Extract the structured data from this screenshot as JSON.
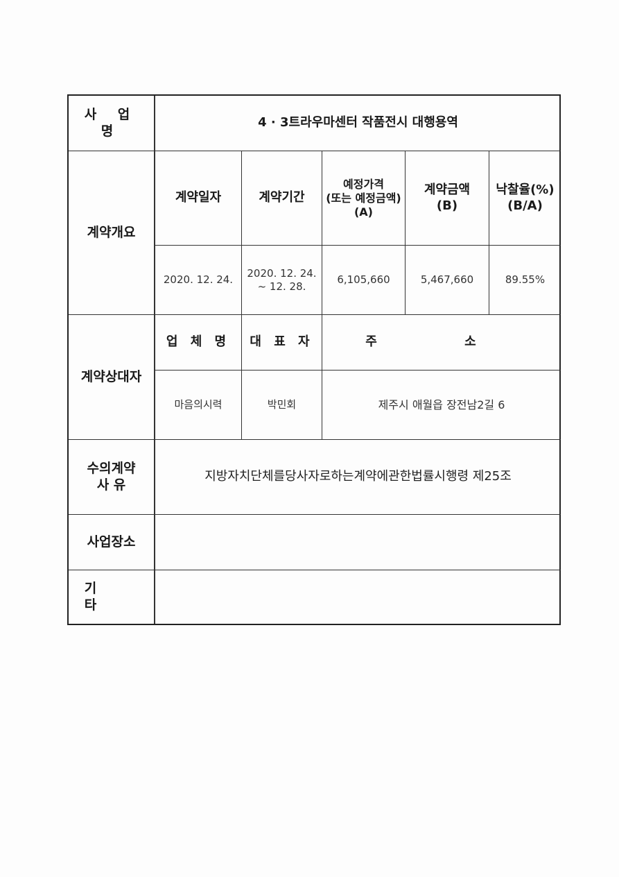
{
  "project": {
    "label": "사 업 명",
    "value": "4 · 3트라우마센터 작품전시 대행용역"
  },
  "overview": {
    "label": "계약개요",
    "headers": [
      "계약일자",
      "계약기간",
      "예정가격\n(또는 예정금액)\n(A)",
      "계약금액\n(B)",
      "낙찰율(%)\n(B/A)"
    ],
    "values": [
      "2020. 12. 24.",
      "2020. 12. 24.\n~ 12. 28.",
      "6,105,660",
      "5,467,660",
      "89.55%"
    ]
  },
  "counterparty": {
    "label": "계약상대자",
    "headers": [
      "업 체 명",
      "대 표 자",
      "주 소"
    ],
    "company": "마음의시력",
    "representative": "박민회",
    "address": "제주시 애월읍 장전남2길 6"
  },
  "reason": {
    "label": "수의계약\n사 유",
    "value": "지방자치단체를당사자로하는계약에관한법률시행령 제25조"
  },
  "location": {
    "label": "사업장소",
    "value": ""
  },
  "other": {
    "label": "기 타",
    "value": ""
  }
}
